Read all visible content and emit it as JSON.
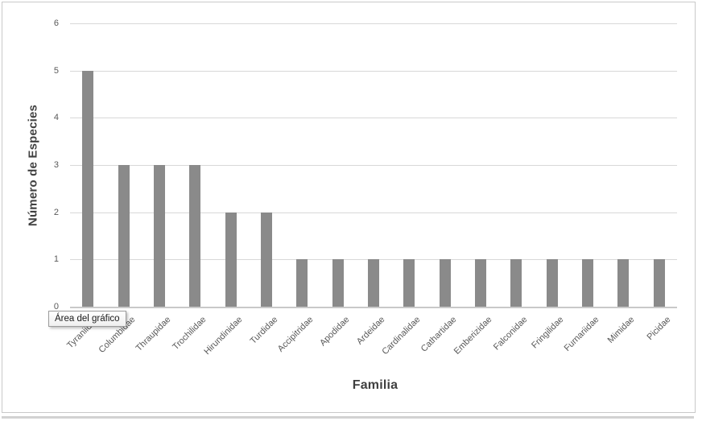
{
  "tooltip": {
    "label": "Área del gráfico"
  },
  "chart_data": {
    "type": "bar",
    "title": "",
    "categories": [
      "Tyraniidae",
      "Columbidae",
      "Thraupidae",
      "Trochilidae",
      "Hirundinidae",
      "Turdidae",
      "Accipitridae",
      "Apodidae",
      "Ardeidae",
      "Cardinalidae",
      "Cathartidae",
      "Emberizidae",
      "Falconidae",
      "Fringilidae",
      "Furnariidae",
      "Mimidae",
      "Picidae"
    ],
    "values": [
      5,
      3,
      3,
      3,
      2,
      2,
      1,
      1,
      1,
      1,
      1,
      1,
      1,
      1,
      1,
      1,
      1
    ],
    "xlabel": "Familia",
    "ylabel": "Número de Especies",
    "ylim": [
      0,
      6
    ],
    "yticks": [
      0,
      1,
      2,
      3,
      4,
      5,
      6
    ],
    "grid": true,
    "legend": "none",
    "bar_color": "#8a8a8a",
    "gridline_color": "#d8d8d8",
    "axis_label_color": "#595959",
    "axis_title_color": "#404040"
  }
}
